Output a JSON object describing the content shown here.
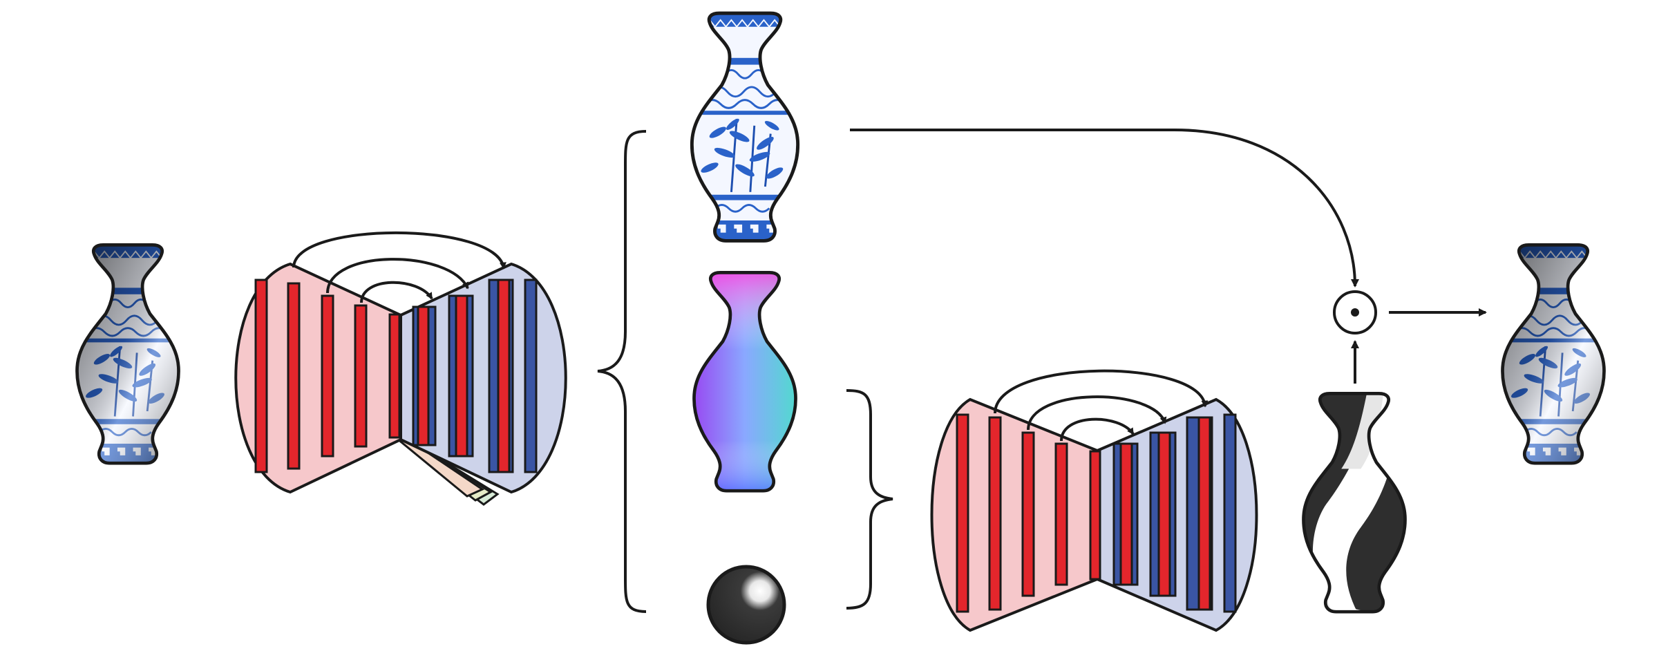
{
  "diagram": {
    "nodes": [
      {
        "id": "input-image",
        "kind": "shaded vase photo"
      },
      {
        "id": "decomposition-network",
        "kind": "encoder-decoder with skip connections and multiple output heads"
      },
      {
        "id": "albedo-output",
        "kind": "blue-and-white porcelain vase texture"
      },
      {
        "id": "normals-output",
        "kind": "surface normal map vase"
      },
      {
        "id": "lighting-output",
        "kind": "shaded sphere"
      },
      {
        "id": "shading-network",
        "kind": "encoder-decoder with skip connections"
      },
      {
        "id": "shading-output",
        "kind": "grayscale shading vase"
      },
      {
        "id": "product-operator",
        "symbol": "⊙"
      },
      {
        "id": "reconstruction-output",
        "kind": "reconstructed shaded vase"
      }
    ],
    "edges": [
      [
        "input-image",
        "decomposition-network"
      ],
      [
        "decomposition-network",
        "albedo-output"
      ],
      [
        "decomposition-network",
        "normals-output"
      ],
      [
        "decomposition-network",
        "lighting-output"
      ],
      [
        "normals-output",
        "shading-network"
      ],
      [
        "lighting-output",
        "shading-network"
      ],
      [
        "shading-network",
        "shading-output"
      ],
      [
        "albedo-output",
        "product-operator"
      ],
      [
        "shading-output",
        "product-operator"
      ],
      [
        "product-operator",
        "reconstruction-output"
      ]
    ],
    "colors": {
      "encoder_fill": "#f6c8cb",
      "decoder_fill": "#cdd3ea",
      "encoder_bar": "#e3262c",
      "decoder_bar": "#3a55a4",
      "porcelain_blue": "#2a62c9",
      "porcelain_white": "#f4f7ff",
      "outline": "#1a1a1a",
      "shading_dark": "#3a3a3a",
      "head_colors": [
        "#f4d8c8",
        "#e6ecc8",
        "#d8ecd8"
      ]
    }
  }
}
